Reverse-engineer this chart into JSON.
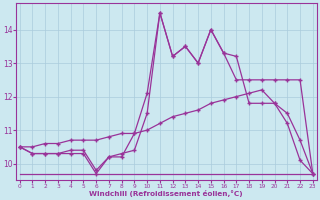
{
  "x": [
    0,
    1,
    2,
    3,
    4,
    5,
    6,
    7,
    8,
    9,
    10,
    11,
    12,
    13,
    14,
    15,
    16,
    17,
    18,
    19,
    20,
    21,
    22,
    23
  ],
  "line1": [
    10.5,
    10.3,
    10.3,
    10.3,
    10.3,
    10.3,
    9.7,
    10.2,
    10.2,
    10.9,
    12.1,
    14.5,
    13.2,
    13.5,
    13.0,
    14.0,
    13.3,
    13.2,
    11.8,
    11.8,
    11.8,
    11.2,
    10.1,
    9.7
  ],
  "line2": [
    10.5,
    10.3,
    10.3,
    10.3,
    10.4,
    10.4,
    9.8,
    10.2,
    10.3,
    10.4,
    11.5,
    14.5,
    13.2,
    13.5,
    13.0,
    14.0,
    13.3,
    12.5,
    12.5,
    12.5,
    12.5,
    12.5,
    12.5,
    9.7
  ],
  "line3": [
    10.5,
    10.5,
    10.6,
    10.6,
    10.7,
    10.7,
    10.7,
    10.8,
    10.9,
    10.9,
    11.0,
    11.2,
    11.4,
    11.5,
    11.6,
    11.8,
    11.9,
    12.0,
    12.1,
    12.2,
    11.8,
    11.5,
    10.7,
    9.7
  ],
  "line4": [
    9.7,
    9.7,
    9.7,
    9.7,
    9.7,
    9.7,
    9.7,
    9.7,
    9.7,
    9.7,
    9.7,
    9.7,
    9.7,
    9.7,
    9.7,
    9.7,
    9.7,
    9.7,
    9.7,
    9.7,
    9.7,
    9.7,
    9.7,
    9.7
  ],
  "color": "#993399",
  "bg_color": "#cce8f0",
  "grid_color": "#aaccdd",
  "xlabel": "Windchill (Refroidissement éolien,°C)",
  "ylim": [
    9.5,
    14.8
  ],
  "xlim": [
    -0.3,
    23.3
  ],
  "yticks": [
    10,
    11,
    12,
    13,
    14
  ]
}
